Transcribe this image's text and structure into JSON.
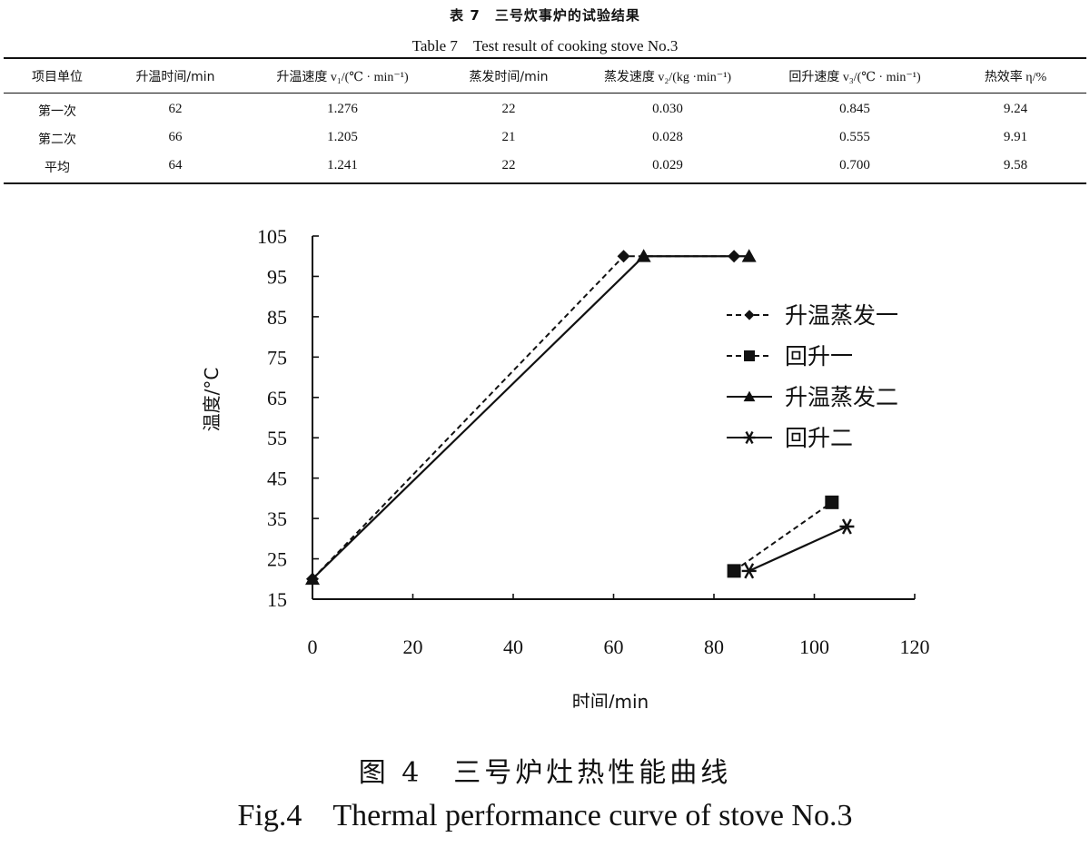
{
  "table": {
    "title_cn": "表 7　三号炊事炉的试验结果",
    "title_en": "Table 7　Test result of cooking stove No.3",
    "headers": [
      "项目单位",
      "升温时间/min",
      "升温速度 v₁/(℃ · min⁻¹)",
      "蒸发时间/min",
      "蒸发速度 v₂/(kg ·min⁻¹)",
      "回升速度 v₃/(℃ · min⁻¹)",
      "热效率 η/%"
    ],
    "rows": [
      [
        "第一次",
        "62",
        "1.276",
        "22",
        "0.030",
        "0.845",
        "9.24"
      ],
      [
        "第二次",
        "66",
        "1.205",
        "21",
        "0.028",
        "0.555",
        "9.91"
      ],
      [
        "平均",
        "64",
        "1.241",
        "22",
        "0.029",
        "0.700",
        "9.58"
      ]
    ]
  },
  "figure": {
    "caption_cn": "图 4　三号炉灶热性能曲线",
    "caption_en": "Fig.4　Thermal performance curve of stove No.3"
  },
  "chart_data": {
    "type": "line",
    "title": "",
    "xlabel": "时间/min",
    "ylabel": "温度/°C",
    "xlim": [
      0,
      120
    ],
    "ylim": [
      15,
      105
    ],
    "xticks": [
      0,
      20,
      40,
      60,
      80,
      100,
      120
    ],
    "yticks": [
      15,
      25,
      35,
      45,
      55,
      65,
      75,
      85,
      95,
      105
    ],
    "grid": false,
    "legend_position": "right",
    "series": [
      {
        "name": "升温蒸发一",
        "marker": "diamond",
        "line": "dashed",
        "x": [
          0,
          62,
          84
        ],
        "y": [
          20,
          100,
          100
        ]
      },
      {
        "name": "回升一",
        "marker": "square",
        "line": "dashed",
        "x": [
          84,
          103.5
        ],
        "y": [
          22,
          39
        ]
      },
      {
        "name": "升温蒸发二",
        "marker": "triangle",
        "line": "solid",
        "x": [
          0,
          66,
          87
        ],
        "y": [
          20,
          100,
          100
        ]
      },
      {
        "name": "回升二",
        "marker": "asterisk",
        "line": "solid",
        "x": [
          87,
          106.5
        ],
        "y": [
          22,
          33
        ]
      }
    ]
  }
}
